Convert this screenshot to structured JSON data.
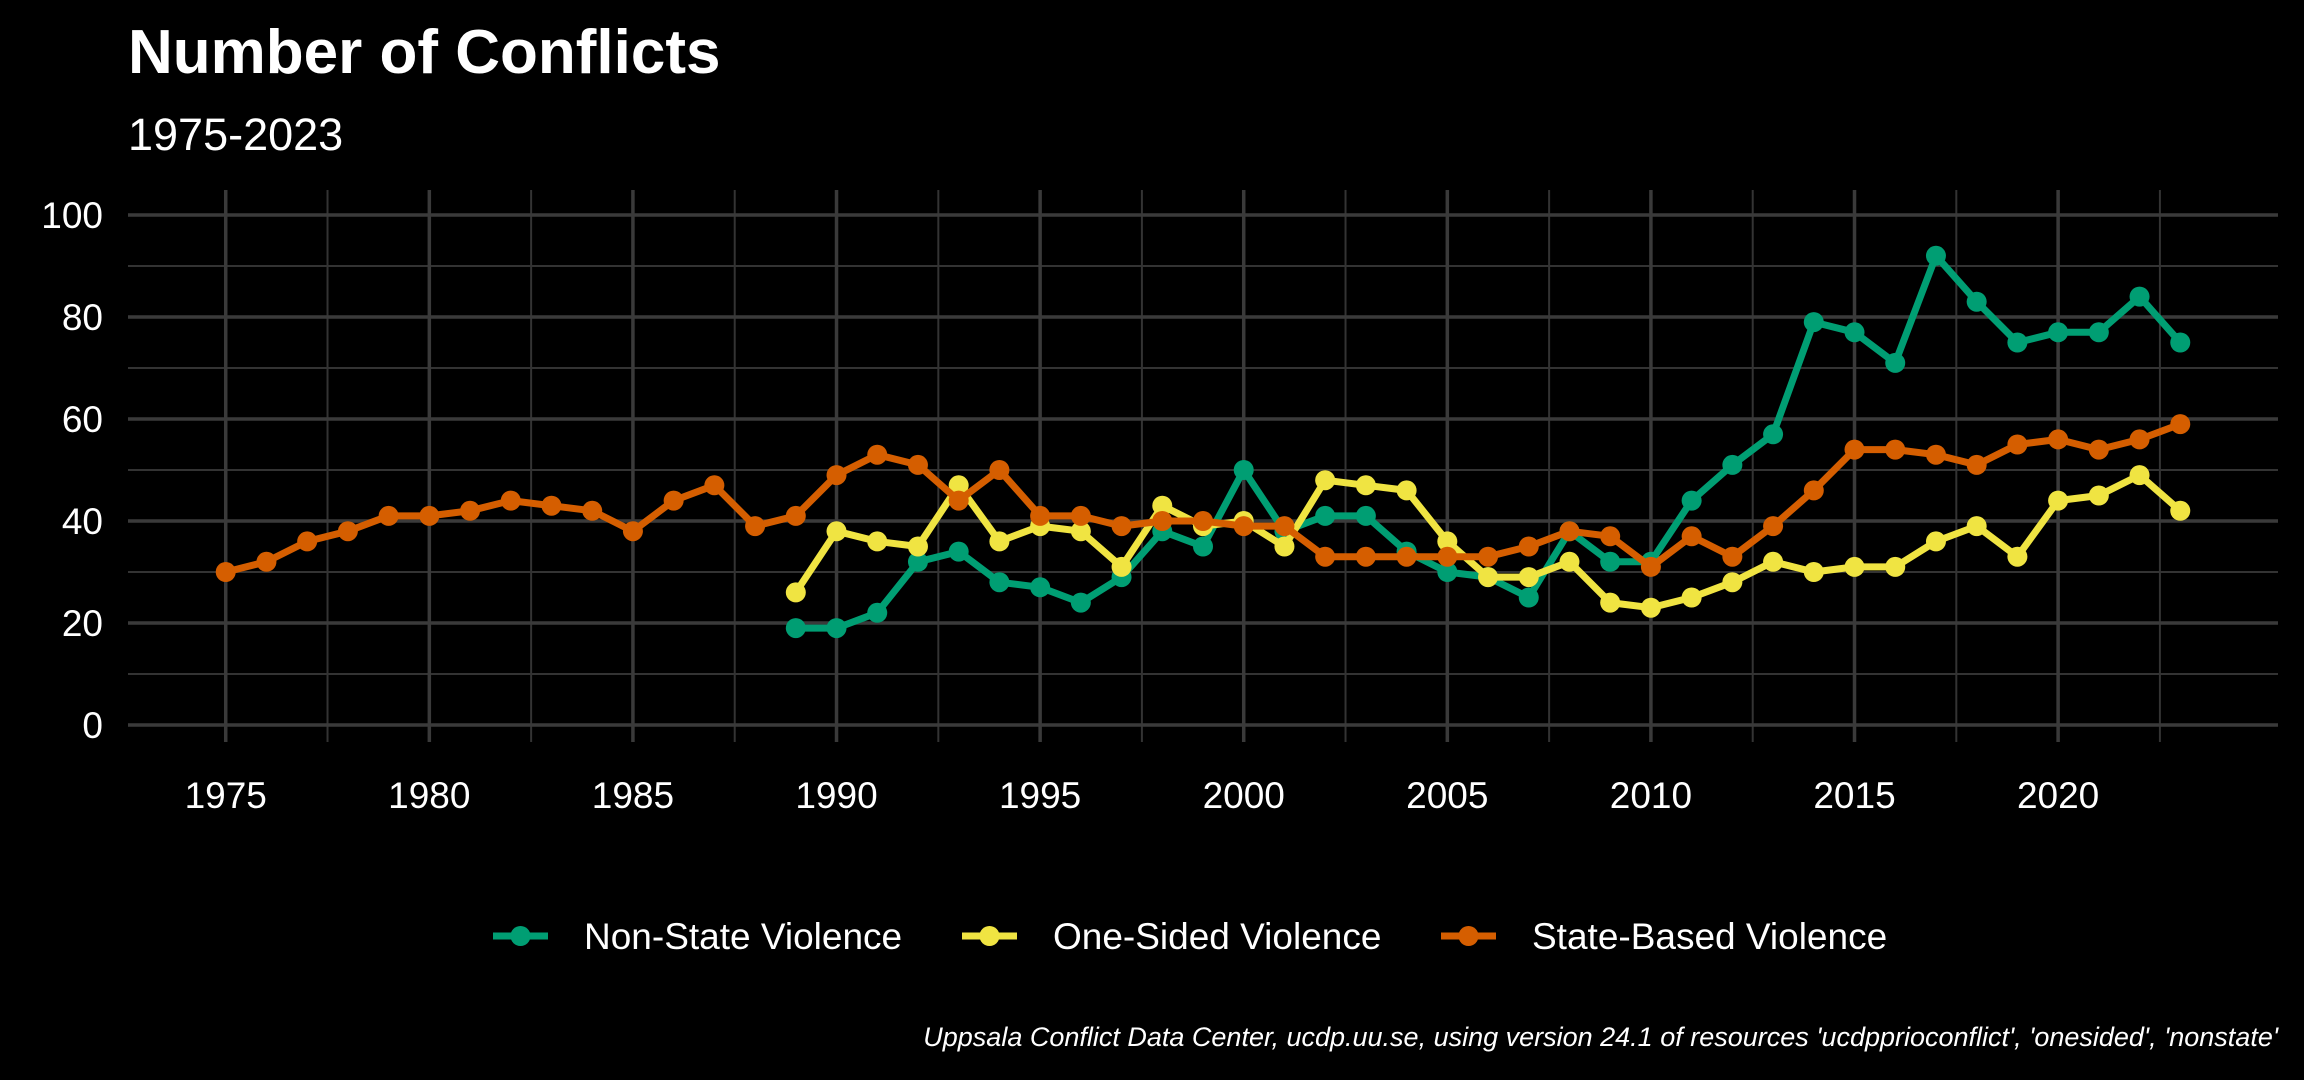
{
  "chart_data": {
    "type": "line",
    "title": "Number of Conflicts",
    "subtitle": "1975-2023",
    "caption": "Uppsala Conflict Data Center, ucdp.uu.se, using version 24.1 of resources 'ucdpprioconflict', 'onesided', 'nonstate'",
    "xlabel": "",
    "ylabel": "",
    "xlim": [
      1972.6,
      2025.4
    ],
    "ylim": [
      0,
      100
    ],
    "x_ticks": [
      1975,
      1980,
      1985,
      1990,
      1995,
      2000,
      2005,
      2010,
      2015,
      2020
    ],
    "y_ticks": [
      0,
      20,
      40,
      60,
      80,
      100
    ],
    "grid": true,
    "legend_position": "bottom",
    "colors": {
      "background": "#000000",
      "Non-State Violence": "#009E73",
      "One-Sided Violence": "#F0E442",
      "State-Based Violence": "#D55E00"
    },
    "series": [
      {
        "name": "Non-State Violence",
        "x": [
          1989,
          1990,
          1991,
          1992,
          1993,
          1994,
          1995,
          1996,
          1997,
          1998,
          1999,
          2000,
          2001,
          2002,
          2003,
          2004,
          2005,
          2006,
          2007,
          2008,
          2009,
          2010,
          2011,
          2012,
          2013,
          2014,
          2015,
          2016,
          2017,
          2018,
          2019,
          2020,
          2021,
          2022,
          2023
        ],
        "values": [
          19,
          19,
          22,
          32,
          34,
          28,
          27,
          24,
          29,
          38,
          35,
          50,
          38,
          41,
          41,
          34,
          30,
          29,
          25,
          38,
          32,
          32,
          44,
          51,
          57,
          79,
          77,
          71,
          92,
          83,
          75,
          77,
          77,
          84,
          75
        ]
      },
      {
        "name": "One-Sided Violence",
        "x": [
          1989,
          1990,
          1991,
          1992,
          1993,
          1994,
          1995,
          1996,
          1997,
          1998,
          1999,
          2000,
          2001,
          2002,
          2003,
          2004,
          2005,
          2006,
          2007,
          2008,
          2009,
          2010,
          2011,
          2012,
          2013,
          2014,
          2015,
          2016,
          2017,
          2018,
          2019,
          2020,
          2021,
          2022,
          2023
        ],
        "values": [
          26,
          38,
          36,
          35,
          47,
          36,
          39,
          38,
          31,
          43,
          39,
          40,
          35,
          48,
          47,
          46,
          36,
          29,
          29,
          32,
          24,
          23,
          25,
          28,
          32,
          30,
          31,
          31,
          36,
          39,
          33,
          44,
          45,
          49,
          42
        ]
      },
      {
        "name": "State-Based Violence",
        "x": [
          1975,
          1976,
          1977,
          1978,
          1979,
          1980,
          1981,
          1982,
          1983,
          1984,
          1985,
          1986,
          1987,
          1988,
          1989,
          1990,
          1991,
          1992,
          1993,
          1994,
          1995,
          1996,
          1997,
          1998,
          1999,
          2000,
          2001,
          2002,
          2003,
          2004,
          2005,
          2006,
          2007,
          2008,
          2009,
          2010,
          2011,
          2012,
          2013,
          2014,
          2015,
          2016,
          2017,
          2018,
          2019,
          2020,
          2021,
          2022,
          2023
        ],
        "values": [
          30,
          32,
          36,
          38,
          41,
          41,
          42,
          44,
          43,
          42,
          38,
          44,
          47,
          39,
          41,
          49,
          53,
          51,
          44,
          50,
          41,
          41,
          39,
          40,
          40,
          39,
          39,
          33,
          33,
          33,
          33,
          33,
          35,
          38,
          37,
          31,
          37,
          33,
          39,
          46,
          54,
          54,
          53,
          51,
          55,
          56,
          54,
          56,
          59
        ]
      }
    ]
  }
}
